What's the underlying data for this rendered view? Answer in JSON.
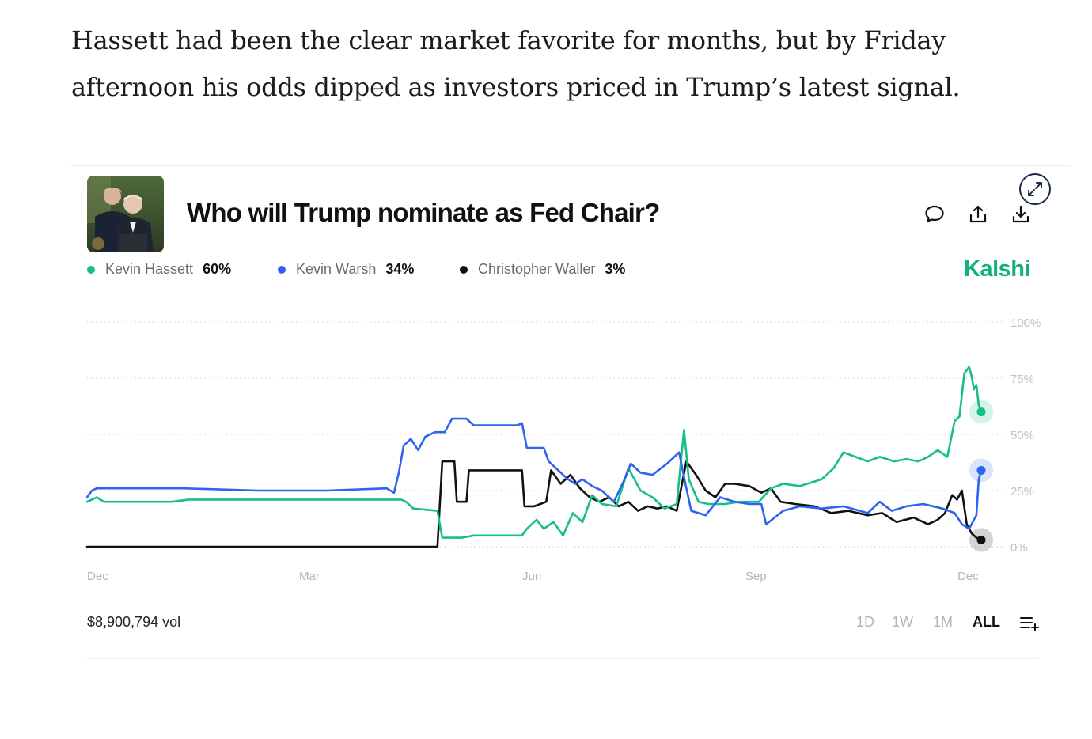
{
  "article": {
    "paragraph": "Hassett had been the clear market favorite for months, but by Friday afternoon his odds dipped as investors priced in Trump’s latest signal."
  },
  "market": {
    "title": "Who will Trump nominate as Fed Chair?",
    "brand": "Kalshi",
    "volume": "$8,900,794 vol",
    "photo_icon": "portrait-photo",
    "icons": [
      "expand-icon",
      "comment-icon",
      "share-icon",
      "download-icon",
      "add-list-icon"
    ],
    "colors": {
      "hassett": "#17bf84",
      "warsh": "#2d63f0",
      "waller": "#111111",
      "brand": "#12b176"
    },
    "legend": [
      {
        "name": "Kevin Hassett",
        "pct": "60%",
        "color": "#17bf84"
      },
      {
        "name": "Kevin Warsh",
        "pct": "34%",
        "color": "#2d63f0"
      },
      {
        "name": "Christopher Waller",
        "pct": "3%",
        "color": "#111111"
      }
    ],
    "ranges": [
      {
        "label": "1D",
        "active": false
      },
      {
        "label": "1W",
        "active": false
      },
      {
        "label": "1M",
        "active": false
      },
      {
        "label": "ALL",
        "active": true
      }
    ]
  },
  "chart_data": {
    "type": "line",
    "x_tick_labels": [
      "Dec",
      "Mar",
      "Jun",
      "Sep",
      "Dec"
    ],
    "y_tick_labels": [
      "100%",
      "75%",
      "50%",
      "25%",
      "0%"
    ],
    "y_ticks": [
      100,
      75,
      50,
      25,
      0
    ],
    "ylim": [
      0,
      100
    ],
    "xlim": [
      "2024-12-01",
      "2025-12-06"
    ],
    "grid": "dotted horizontal",
    "legend_position": "top-left",
    "series": [
      {
        "name": "Kevin Hassett",
        "color": "#17bf84",
        "last": 60,
        "points": [
          [
            "2024-12-01",
            20
          ],
          [
            "2024-12-03",
            21
          ],
          [
            "2024-12-05",
            22
          ],
          [
            "2024-12-08",
            20
          ],
          [
            "2025-01-05",
            20
          ],
          [
            "2025-01-12",
            21
          ],
          [
            "2025-03-15",
            21
          ],
          [
            "2025-04-10",
            21
          ],
          [
            "2025-04-12",
            20
          ],
          [
            "2025-04-15",
            17
          ],
          [
            "2025-04-25",
            16
          ],
          [
            "2025-04-27",
            4
          ],
          [
            "2025-05-05",
            4
          ],
          [
            "2025-05-10",
            5
          ],
          [
            "2025-05-30",
            5
          ],
          [
            "2025-06-01",
            8
          ],
          [
            "2025-06-03",
            10
          ],
          [
            "2025-06-05",
            12
          ],
          [
            "2025-06-08",
            8
          ],
          [
            "2025-06-12",
            11
          ],
          [
            "2025-06-16",
            5
          ],
          [
            "2025-06-20",
            15
          ],
          [
            "2025-06-24",
            11
          ],
          [
            "2025-06-28",
            23
          ],
          [
            "2025-07-02",
            19
          ],
          [
            "2025-07-08",
            18
          ],
          [
            "2025-07-13",
            35
          ],
          [
            "2025-07-18",
            25
          ],
          [
            "2025-07-23",
            22
          ],
          [
            "2025-07-28",
            17
          ],
          [
            "2025-08-02",
            19
          ],
          [
            "2025-08-05",
            52
          ],
          [
            "2025-08-07",
            30
          ],
          [
            "2025-08-11",
            20
          ],
          [
            "2025-08-15",
            19
          ],
          [
            "2025-08-22",
            19
          ],
          [
            "2025-08-28",
            20
          ],
          [
            "2025-09-05",
            20
          ],
          [
            "2025-09-10",
            26
          ],
          [
            "2025-09-15",
            28
          ],
          [
            "2025-09-22",
            27
          ],
          [
            "2025-10-01",
            30
          ],
          [
            "2025-10-06",
            35
          ],
          [
            "2025-10-10",
            42
          ],
          [
            "2025-10-15",
            40
          ],
          [
            "2025-10-20",
            38
          ],
          [
            "2025-10-25",
            40
          ],
          [
            "2025-10-31",
            38
          ],
          [
            "2025-11-05",
            39
          ],
          [
            "2025-11-10",
            38
          ],
          [
            "2025-11-14",
            40
          ],
          [
            "2025-11-18",
            43
          ],
          [
            "2025-11-22",
            40
          ],
          [
            "2025-11-25",
            56
          ],
          [
            "2025-11-27",
            58
          ],
          [
            "2025-11-29",
            77
          ],
          [
            "2025-12-01",
            80
          ],
          [
            "2025-12-02",
            76
          ],
          [
            "2025-12-03",
            70
          ],
          [
            "2025-12-04",
            72
          ],
          [
            "2025-12-05",
            63
          ],
          [
            "2025-12-06",
            60
          ]
        ]
      },
      {
        "name": "Kevin Warsh",
        "color": "#2d63f0",
        "last": 34,
        "points": [
          [
            "2024-12-01",
            22
          ],
          [
            "2024-12-03",
            25
          ],
          [
            "2024-12-05",
            26
          ],
          [
            "2025-01-10",
            26
          ],
          [
            "2025-02-10",
            25
          ],
          [
            "2025-03-10",
            25
          ],
          [
            "2025-04-04",
            26
          ],
          [
            "2025-04-07",
            24
          ],
          [
            "2025-04-09",
            33
          ],
          [
            "2025-04-11",
            45
          ],
          [
            "2025-04-14",
            48
          ],
          [
            "2025-04-17",
            43
          ],
          [
            "2025-04-20",
            49
          ],
          [
            "2025-04-24",
            51
          ],
          [
            "2025-04-28",
            51
          ],
          [
            "2025-05-01",
            57
          ],
          [
            "2025-05-07",
            57
          ],
          [
            "2025-05-10",
            54
          ],
          [
            "2025-05-28",
            54
          ],
          [
            "2025-05-30",
            55
          ],
          [
            "2025-06-01",
            44
          ],
          [
            "2025-06-08",
            44
          ],
          [
            "2025-06-10",
            38
          ],
          [
            "2025-06-14",
            34
          ],
          [
            "2025-06-18",
            30
          ],
          [
            "2025-06-21",
            28
          ],
          [
            "2025-06-24",
            30
          ],
          [
            "2025-06-28",
            27
          ],
          [
            "2025-07-02",
            25
          ],
          [
            "2025-07-07",
            20
          ],
          [
            "2025-07-11",
            29
          ],
          [
            "2025-07-14",
            37
          ],
          [
            "2025-07-18",
            33
          ],
          [
            "2025-07-23",
            32
          ],
          [
            "2025-07-29",
            37
          ],
          [
            "2025-08-01",
            40
          ],
          [
            "2025-08-03",
            42
          ],
          [
            "2025-08-05",
            31
          ],
          [
            "2025-08-08",
            16
          ],
          [
            "2025-08-14",
            14
          ],
          [
            "2025-08-20",
            22
          ],
          [
            "2025-08-26",
            20
          ],
          [
            "2025-09-01",
            19
          ],
          [
            "2025-09-06",
            19
          ],
          [
            "2025-09-08",
            10
          ],
          [
            "2025-09-15",
            16
          ],
          [
            "2025-09-22",
            18
          ],
          [
            "2025-10-01",
            17
          ],
          [
            "2025-10-10",
            18
          ],
          [
            "2025-10-20",
            15
          ],
          [
            "2025-10-25",
            20
          ],
          [
            "2025-10-30",
            16
          ],
          [
            "2025-11-05",
            18
          ],
          [
            "2025-11-12",
            19
          ],
          [
            "2025-11-20",
            17
          ],
          [
            "2025-11-25",
            15
          ],
          [
            "2025-11-28",
            10
          ],
          [
            "2025-12-01",
            8
          ],
          [
            "2025-12-03",
            12
          ],
          [
            "2025-12-04",
            14
          ],
          [
            "2025-12-05",
            30
          ],
          [
            "2025-12-06",
            34
          ]
        ]
      },
      {
        "name": "Christopher Waller",
        "color": "#111111",
        "last": 3,
        "points": [
          [
            "2024-12-01",
            0
          ],
          [
            "2025-04-25",
            0
          ],
          [
            "2025-04-27",
            38
          ],
          [
            "2025-05-02",
            38
          ],
          [
            "2025-05-03",
            20
          ],
          [
            "2025-05-07",
            20
          ],
          [
            "2025-05-08",
            34
          ],
          [
            "2025-05-14",
            34
          ],
          [
            "2025-05-28",
            34
          ],
          [
            "2025-05-30",
            34
          ],
          [
            "2025-05-31",
            18
          ],
          [
            "2025-06-04",
            18
          ],
          [
            "2025-06-09",
            20
          ],
          [
            "2025-06-11",
            34
          ],
          [
            "2025-06-15",
            28
          ],
          [
            "2025-06-19",
            32
          ],
          [
            "2025-06-23",
            26
          ],
          [
            "2025-06-27",
            22
          ],
          [
            "2025-07-01",
            20
          ],
          [
            "2025-07-05",
            22
          ],
          [
            "2025-07-09",
            18
          ],
          [
            "2025-07-13",
            20
          ],
          [
            "2025-07-17",
            16
          ],
          [
            "2025-07-21",
            18
          ],
          [
            "2025-07-25",
            17
          ],
          [
            "2025-07-29",
            18
          ],
          [
            "2025-08-02",
            16
          ],
          [
            "2025-08-06",
            38
          ],
          [
            "2025-08-10",
            32
          ],
          [
            "2025-08-14",
            25
          ],
          [
            "2025-08-18",
            22
          ],
          [
            "2025-08-22",
            28
          ],
          [
            "2025-08-26",
            28
          ],
          [
            "2025-09-01",
            27
          ],
          [
            "2025-09-06",
            24
          ],
          [
            "2025-09-10",
            26
          ],
          [
            "2025-09-14",
            20
          ],
          [
            "2025-09-20",
            19
          ],
          [
            "2025-09-28",
            18
          ],
          [
            "2025-10-05",
            15
          ],
          [
            "2025-10-12",
            16
          ],
          [
            "2025-10-20",
            14
          ],
          [
            "2025-10-26",
            15
          ],
          [
            "2025-11-01",
            11
          ],
          [
            "2025-11-08",
            13
          ],
          [
            "2025-11-14",
            10
          ],
          [
            "2025-11-18",
            12
          ],
          [
            "2025-11-21",
            15
          ],
          [
            "2025-11-24",
            23
          ],
          [
            "2025-11-26",
            21
          ],
          [
            "2025-11-28",
            25
          ],
          [
            "2025-11-30",
            10
          ],
          [
            "2025-12-02",
            6
          ],
          [
            "2025-12-04",
            4
          ],
          [
            "2025-12-06",
            3
          ]
        ]
      }
    ]
  }
}
